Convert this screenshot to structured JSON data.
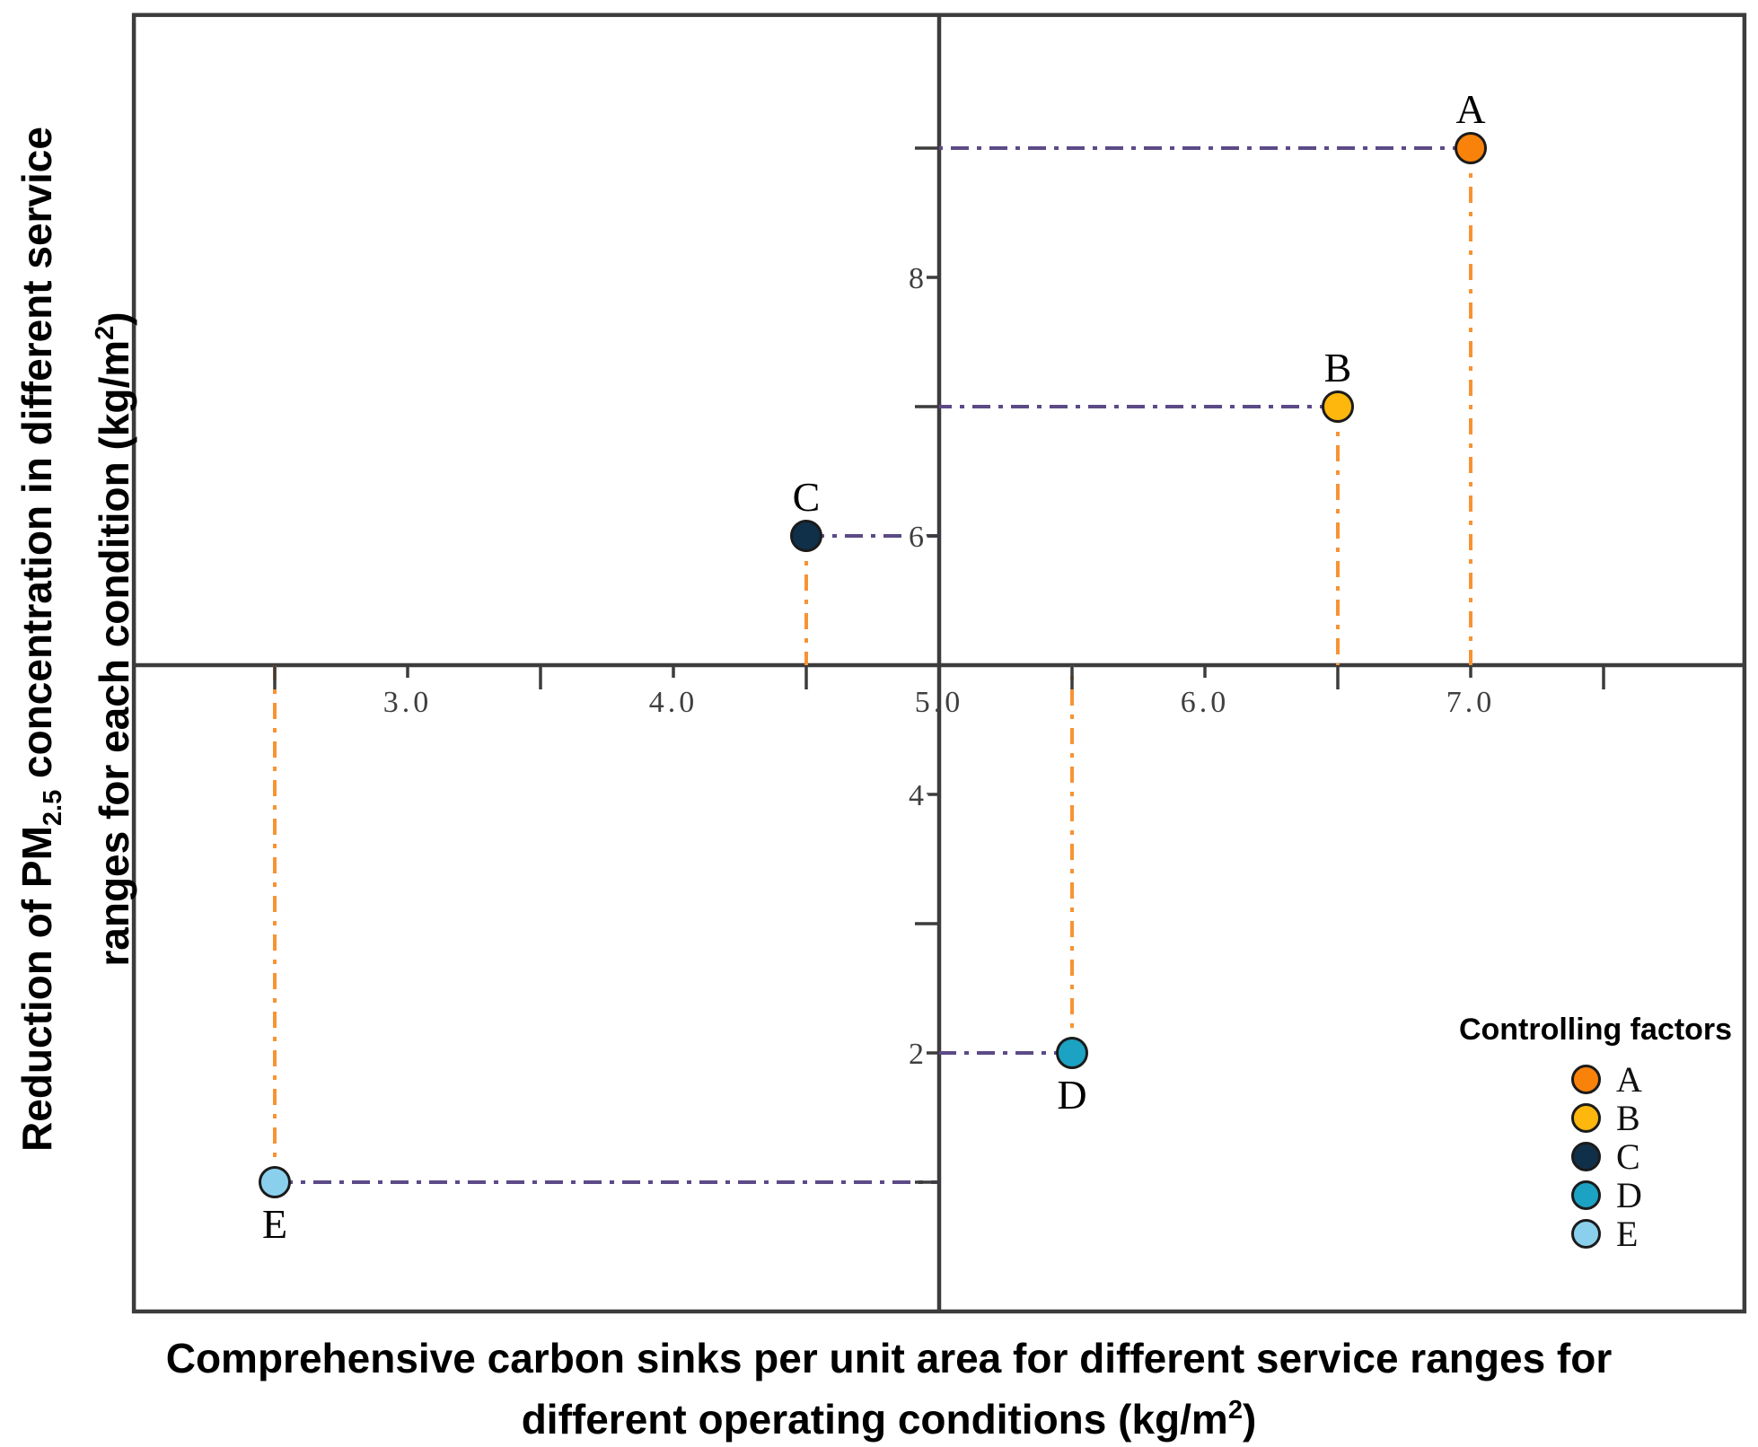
{
  "figure": {
    "background": "#ffffff"
  },
  "axis_labels": {
    "y": {
      "l1_pre": "Reduction of PM",
      "l1_sub": "2.5",
      "l1_post": " concentration in different service",
      "l2_pre": "ranges for each condition (kg/m",
      "l2_sup": "2",
      "l2_post": ")"
    },
    "x": {
      "l1": "Comprehensive carbon sinks per unit area for different service ranges for",
      "l2_pre": "different operating conditions (kg/m",
      "l2_sup": "2",
      "l2_post": ")"
    }
  },
  "legend": {
    "title": "Controlling factors",
    "items": [
      {
        "label": "A",
        "color": "#F8820A"
      },
      {
        "label": "B",
        "color": "#FDB70D"
      },
      {
        "label": "C",
        "color": "#103049"
      },
      {
        "label": "D",
        "color": "#1CA2C2"
      },
      {
        "label": "E",
        "color": "#8AD0EC"
      }
    ]
  },
  "chart_data": {
    "type": "scatter",
    "title": "",
    "xlabel": "Comprehensive carbon sinks per unit area for different service ranges for different operating conditions (kg/m2)",
    "ylabel": "Reduction of PM2.5 concentration in different service ranges for each condition (kg/m2)",
    "xlim": [
      1.97,
      8.03
    ],
    "ylim": [
      0,
      10.03
    ],
    "axes_cross": [
      5.0,
      5.0
    ],
    "grid": false,
    "legend_position": "lower right",
    "x_major_ticks": [
      {
        "value": 3.0,
        "label": "3.0"
      },
      {
        "value": 4.0,
        "label": "4.0"
      },
      {
        "value": 5.0,
        "label": "5.0"
      },
      {
        "value": 6.0,
        "label": "6.0"
      },
      {
        "value": 7.0,
        "label": "7.0"
      }
    ],
    "x_minor_ticks": [
      2.5,
      3.5,
      4.5,
      5.5,
      6.5,
      7.5
    ],
    "y_major_ticks": [
      {
        "value": 2,
        "label": "2"
      },
      {
        "value": 4,
        "label": "4"
      },
      {
        "value": 6,
        "label": "6"
      },
      {
        "value": 8,
        "label": "8"
      }
    ],
    "y_minor_ticks": [
      1,
      3,
      7,
      9
    ],
    "points": [
      {
        "name": "A",
        "x": 7.0,
        "y": 9,
        "color": "#F8820A",
        "label_position": "above"
      },
      {
        "name": "B",
        "x": 6.5,
        "y": 7,
        "color": "#FDB70D",
        "label_position": "above"
      },
      {
        "name": "C",
        "x": 4.5,
        "y": 6,
        "color": "#103049",
        "label_position": "above"
      },
      {
        "name": "D",
        "x": 5.5,
        "y": 2,
        "color": "#1CA2C2",
        "label_position": "below"
      },
      {
        "name": "E",
        "x": 2.5,
        "y": 1,
        "color": "#8AD0EC",
        "label_position": "below"
      }
    ],
    "connector_colors": {
      "vertical_to_x_axis": "#F79333",
      "horizontal_to_y_axis": "#5C4A87"
    },
    "axis_color": "#3C3C3C",
    "tick_label_color": "#3F3F3F"
  }
}
